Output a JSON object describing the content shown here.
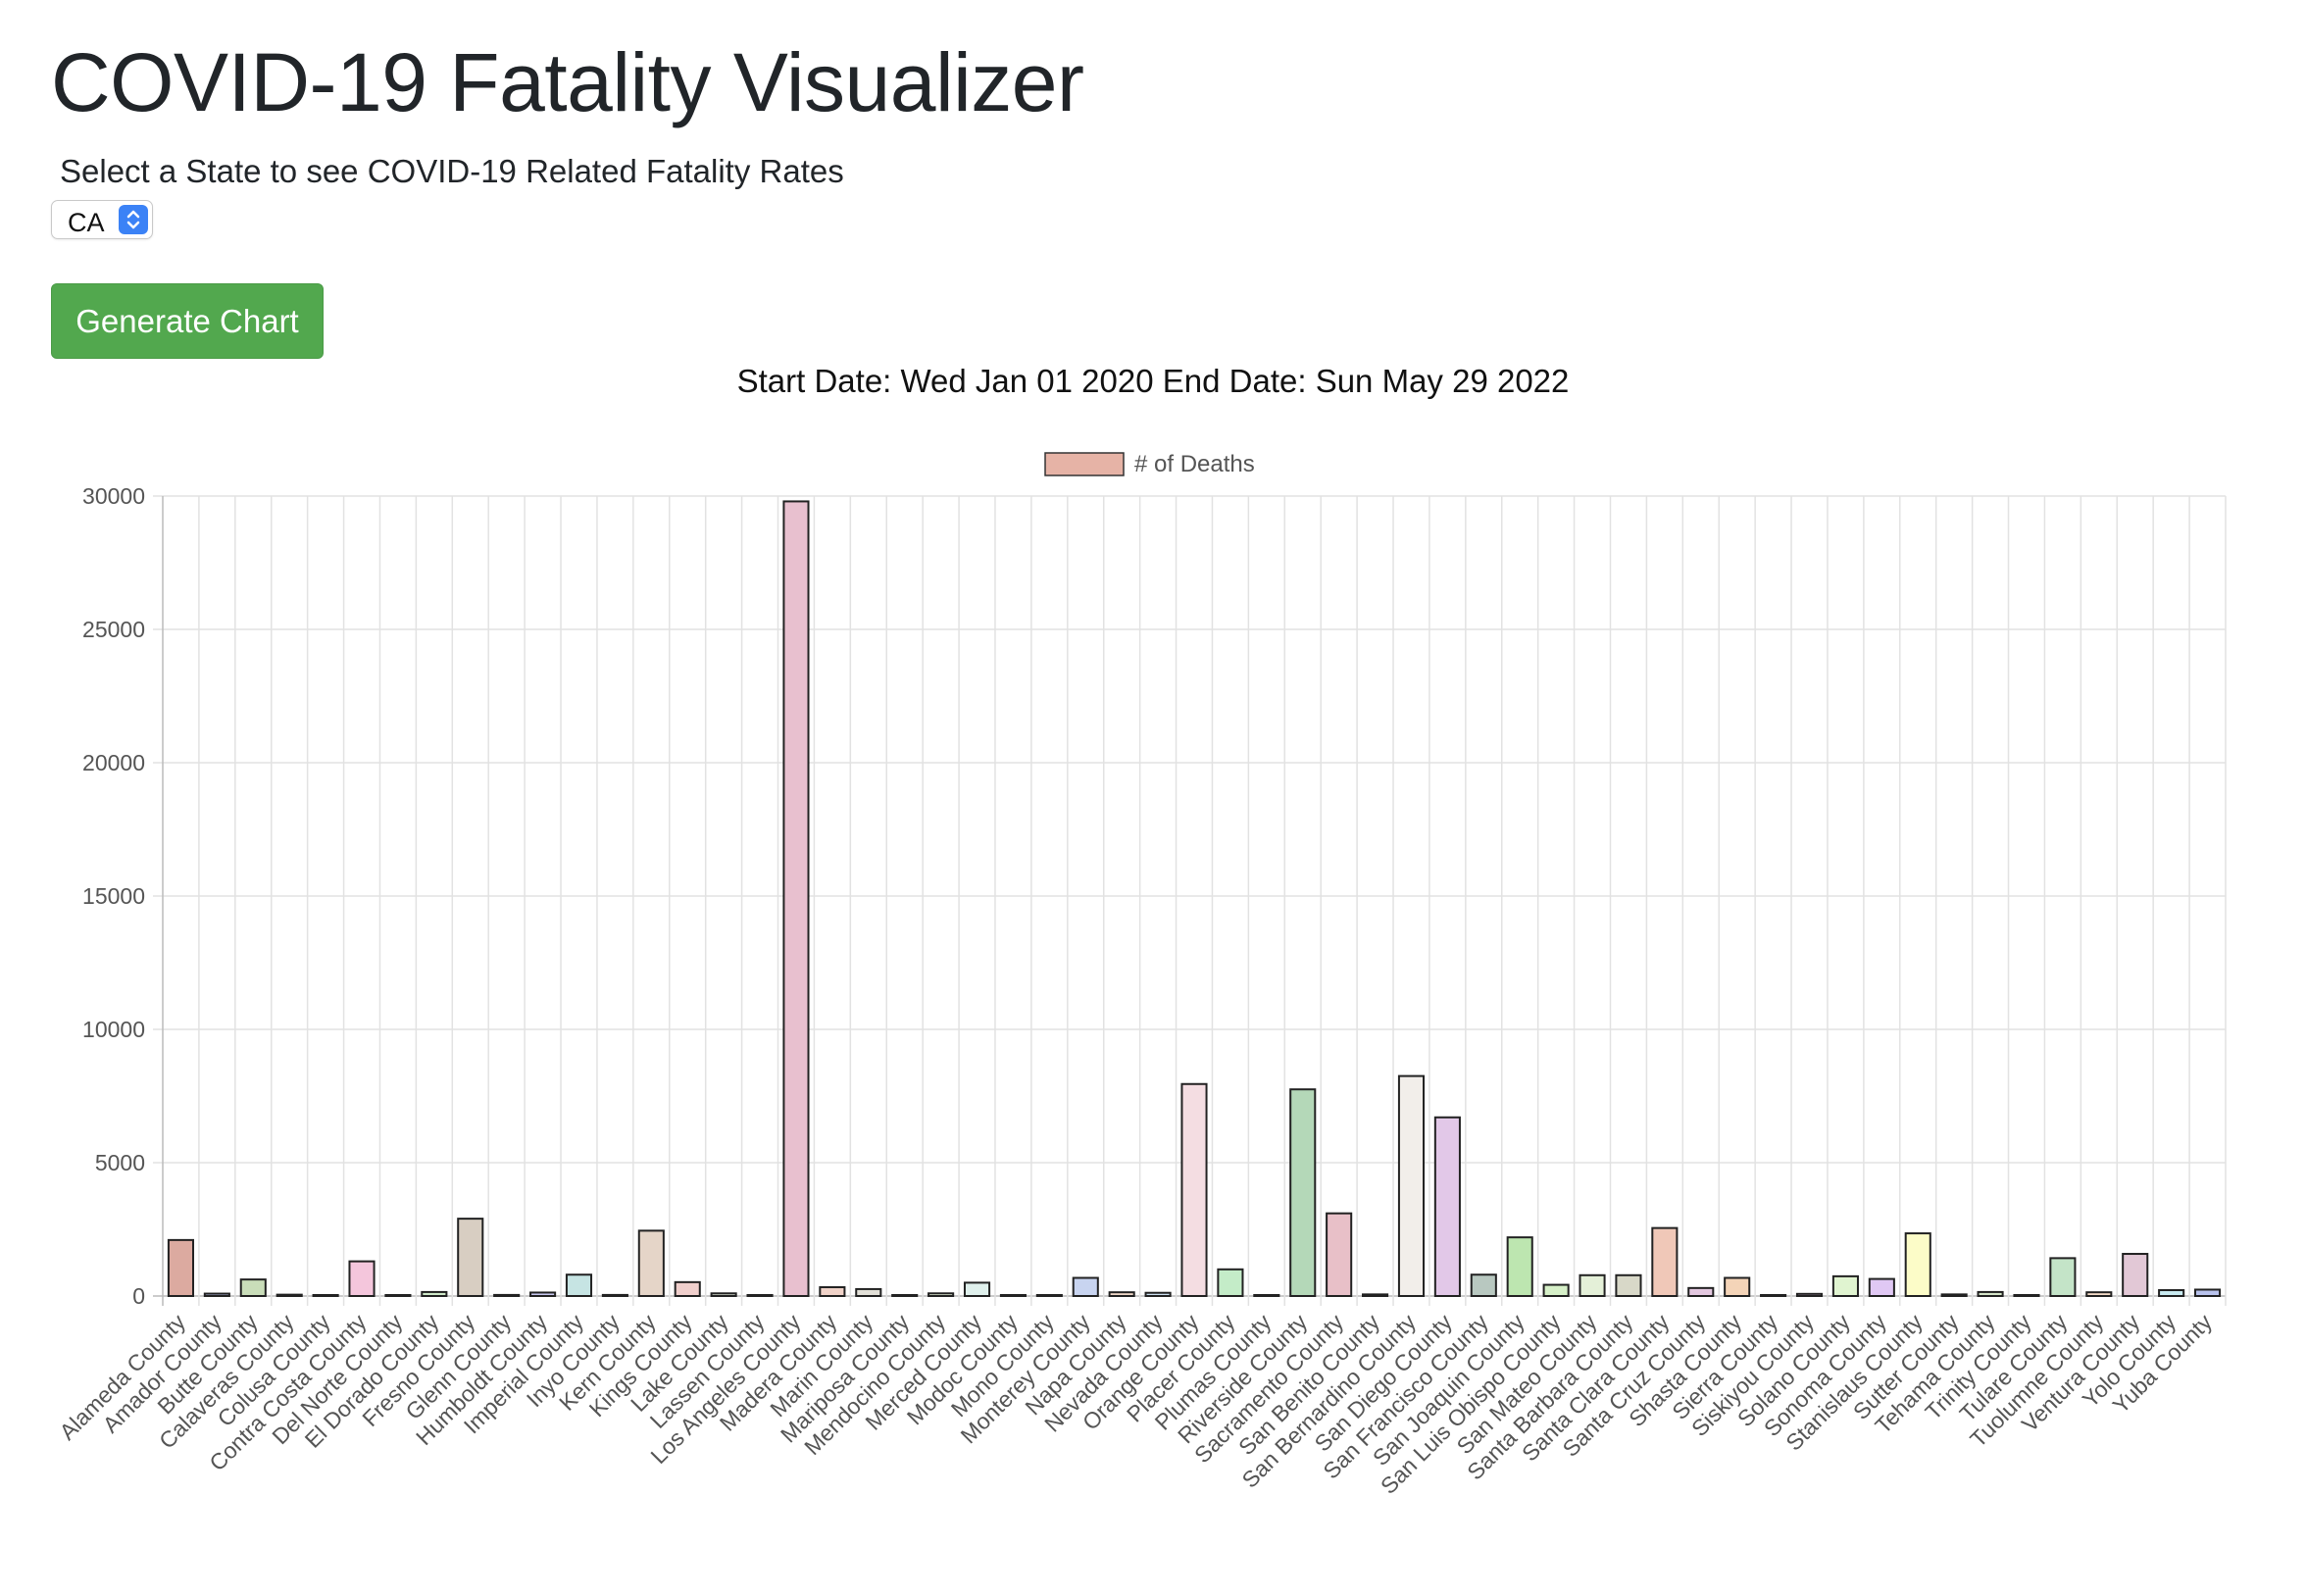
{
  "header": {
    "title": "COVID-19 Fatality Visualizer",
    "prompt": "Select a State to see COVID-19 Related Fatality Rates"
  },
  "state_select": {
    "selected": "CA",
    "icon": "chevron-up-down-icon",
    "accent": "#3b82f6"
  },
  "generate_button": {
    "label": "Generate Chart",
    "color": "#52a84e"
  },
  "date_range": {
    "text": "Start Date: Wed Jan 01 2020 End Date: Sun May 29 2022"
  },
  "chart_data": {
    "type": "bar",
    "title": "",
    "xlabel": "",
    "ylabel": "",
    "ylim": [
      0,
      30000
    ],
    "yticks": [
      0,
      5000,
      10000,
      15000,
      20000,
      25000,
      30000
    ],
    "grid": true,
    "legend": {
      "position": "top",
      "label": "# of Deaths",
      "color": "#e6b3a6"
    },
    "categories": [
      "Alameda County",
      "Amador County",
      "Butte County",
      "Calaveras County",
      "Colusa County",
      "Contra Costa County",
      "Del Norte County",
      "El Dorado County",
      "Fresno County",
      "Glenn County",
      "Humboldt County",
      "Imperial County",
      "Inyo County",
      "Kern County",
      "Kings County",
      "Lake County",
      "Lassen County",
      "Los Angeles County",
      "Madera County",
      "Marin County",
      "Mariposa County",
      "Mendocino County",
      "Merced County",
      "Modoc County",
      "Mono County",
      "Monterey County",
      "Napa County",
      "Nevada County",
      "Orange County",
      "Placer County",
      "Plumas County",
      "Riverside County",
      "Sacramento County",
      "San Benito County",
      "San Bernardino County",
      "San Diego County",
      "San Francisco County",
      "San Joaquin County",
      "San Luis Obispo County",
      "San Mateo County",
      "Santa Barbara County",
      "Santa Clara County",
      "Santa Cruz County",
      "Shasta County",
      "Sierra County",
      "Siskiyou County",
      "Solano County",
      "Sonoma County",
      "Stanislaus County",
      "Sutter County",
      "Tehama County",
      "Trinity County",
      "Tulare County",
      "Tuolumne County",
      "Ventura County",
      "Yolo County",
      "Yuba County"
    ],
    "values": [
      2100,
      90,
      620,
      50,
      20,
      1300,
      30,
      150,
      2900,
      40,
      130,
      800,
      40,
      2450,
      520,
      100,
      30,
      29800,
      330,
      260,
      20,
      100,
      500,
      10,
      5,
      680,
      140,
      120,
      7950,
      1000,
      20,
      7750,
      3100,
      60,
      8250,
      6700,
      800,
      2200,
      420,
      780,
      780,
      2550,
      300,
      680,
      3,
      80,
      740,
      640,
      2350,
      60,
      150,
      10,
      1420,
      140,
      1580,
      220,
      240
    ],
    "colors": [
      "#dcaaa0",
      "#b4bce0",
      "#c9ddb9",
      "#e1c2ca",
      "#d2dce8",
      "#f4c6dc",
      "#c7dfd9",
      "#cfe9c9",
      "#d8cec2",
      "#e4d8e6",
      "#c8c8f0",
      "#c6e4e3",
      "#e9dccc",
      "#e5d5c8",
      "#f0cfcc",
      "#d0d6c8",
      "#e0d0e4",
      "#e8c0cf",
      "#f0d2c8",
      "#e2e0d8",
      "#d8e0ee",
      "#e2ecd4",
      "#dff0ec",
      "#e4e4f4",
      "#f4f4f4",
      "#c8d4f0",
      "#f0d8c8",
      "#cce0f0",
      "#f4dde2",
      "#c4ecc8",
      "#dbe4d8",
      "#b4d8b8",
      "#e8c0c8",
      "#d8e8e4",
      "#f2eeea",
      "#e2c8e8",
      "#b8c8c0",
      "#bde6b0",
      "#d6f0c8",
      "#e4f0d8",
      "#d8d8c8",
      "#f0c8b8",
      "#e4c8e0",
      "#f4d4b8",
      "#e4e4e4",
      "#e0c0e4",
      "#e0f4d0",
      "#e0c8f4",
      "#fcfcc8",
      "#d8dcd4",
      "#d4e4c8",
      "#e0e0e0",
      "#c4e4c8",
      "#f4dcc8",
      "#e2c8d6",
      "#c8eaf0",
      "#b8c2ec"
    ]
  }
}
